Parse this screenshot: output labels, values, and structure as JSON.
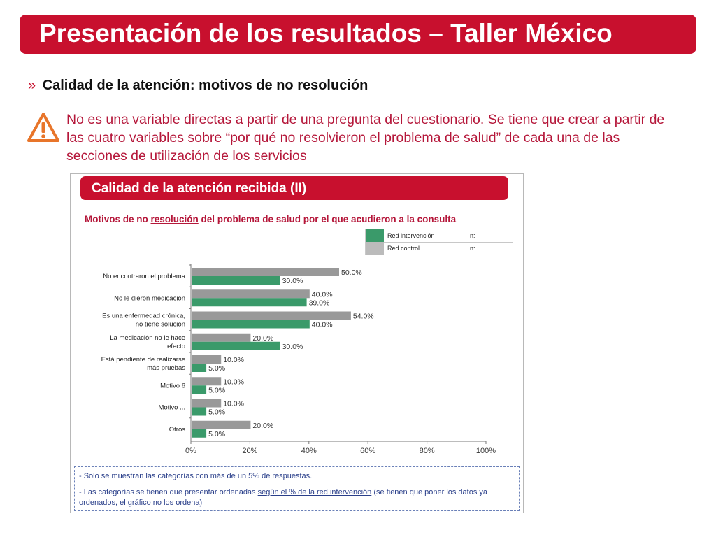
{
  "slide": {
    "title": "Presentación de los resultados – Taller México",
    "subtitle_marker": "»",
    "subtitle": "Calidad de la atención: motivos de no resolución",
    "note": "No es una variable directas a partir de una pregunta del cuestionario. Se tiene que crear a partir de las cuatro variables sobre “por qué no resolvieron el problema de salud” de cada una de las secciones de utilización de los servicios",
    "accent_color": "#c8102e",
    "note_color": "#b5173a",
    "warning_icon": "warning-triangle-icon",
    "warning_icon_color": "#e8752a"
  },
  "panel": {
    "title": "Calidad de la atención recibida (II)",
    "chart_title_part1": "Motivos de no ",
    "chart_title_underlined": "resolución",
    "chart_title_part2": " del problema de salud por el que acudieron a la consulta",
    "notes": {
      "line1": "- Solo se muestran las categorías con más de un 5% de respuestas.",
      "line2_part1": "- Las categorías se tienen que presentar ordenadas ",
      "line2_underlined": "según el % de la red intervención",
      "line2_part2": " (se tienen que poner los datos ya ordenados, el gráfico no los ordena)"
    }
  },
  "chart_data": {
    "type": "bar",
    "orientation": "horizontal",
    "title": "Motivos de no resolución del problema de salud por el que acudieron a la consulta",
    "categories": [
      "No encontraron el problema",
      "No le dieron medicación",
      "Es una enfermedad crónica, no tiene solución",
      "La medicación no le hace efecto",
      "Está pendiente de realizarse más pruebas",
      "Motivo 6",
      "Motivo ...",
      "Otros"
    ],
    "category_lines": [
      [
        "No encontraron el problema"
      ],
      [
        "No le dieron medicación"
      ],
      [
        "Es una enfermedad crónica,",
        "no tiene solución"
      ],
      [
        "La medicación no le hace",
        "efecto"
      ],
      [
        "Está pendiente de realizarse",
        "más pruebas"
      ],
      [
        "Motivo 6"
      ],
      [
        "Motivo ..."
      ],
      [
        "Otros"
      ]
    ],
    "series": [
      {
        "name": "Red control",
        "legend_value": "n:",
        "color": "#999999",
        "values": [
          50.0,
          40.0,
          54.0,
          20.0,
          10.0,
          10.0,
          10.0,
          20.0
        ],
        "labels": [
          "50.0%",
          "40.0%",
          "54.0%",
          "20.0%",
          "10.0%",
          "10.0%",
          "10.0%",
          "20.0%"
        ]
      },
      {
        "name": "Red intervención",
        "legend_value": "n:",
        "color": "#3a9a6a",
        "values": [
          30.0,
          39.0,
          40.0,
          30.0,
          5.0,
          5.0,
          5.0,
          5.0
        ],
        "labels": [
          "30.0%",
          "39.0%",
          "40.0%",
          "30.0%",
          "5.0%",
          "5.0%",
          "5.0%",
          "5.0%"
        ]
      }
    ],
    "legend_order": [
      "Red intervención",
      "Red control"
    ],
    "legend_placement": "top-right",
    "xlim": [
      0,
      100
    ],
    "x_ticks": [
      "0%",
      "20%",
      "40%",
      "60%",
      "80%",
      "100%"
    ],
    "grid": false
  }
}
